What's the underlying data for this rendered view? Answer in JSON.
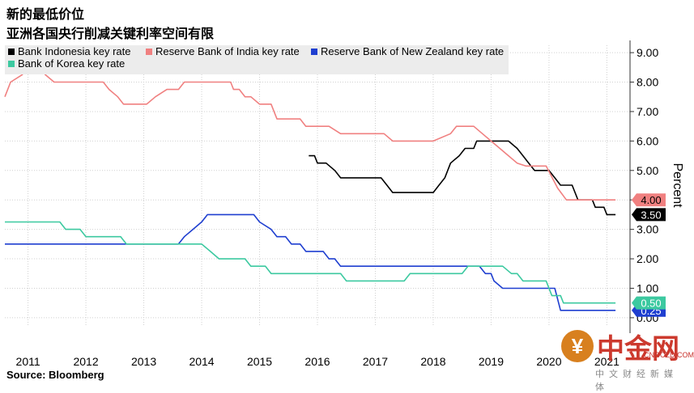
{
  "title_line1": "新的最低价位",
  "title_line2": "亚洲各国央行削减关键利率空间有限",
  "source": "Source: Bloomberg",
  "watermark": {
    "name": "中金网",
    "url": "CNGOLD.COM",
    "tagline": "中文财经新媒体"
  },
  "chart_data": {
    "type": "line",
    "title": "新的最低价位",
    "subtitle": "亚洲各国央行削减关键利率空间有限",
    "xlabel": "",
    "ylabel": "Percent",
    "xlim": [
      2010.6,
      2021.4
    ],
    "ylim": [
      -0.25,
      9.25
    ],
    "x_ticks": [
      "2011",
      "2012",
      "2013",
      "2014",
      "2015",
      "2016",
      "2017",
      "2018",
      "2019",
      "2020",
      "2021"
    ],
    "y_ticks": [
      "0.00",
      "1.00",
      "2.00",
      "3.00",
      "4.00",
      "5.00",
      "6.00",
      "7.00",
      "8.00",
      "9.00"
    ],
    "grid": true,
    "legend_position": "top-left",
    "series": [
      {
        "name": "Bank Indonesia key rate",
        "color": "#000000",
        "end_label": "3.50",
        "points": [
          [
            2015.85,
            5.5
          ],
          [
            2015.95,
            5.5
          ],
          [
            2016.0,
            5.25
          ],
          [
            2016.15,
            5.25
          ],
          [
            2016.3,
            5.0
          ],
          [
            2016.4,
            4.75
          ],
          [
            2016.6,
            4.75
          ],
          [
            2017.0,
            4.75
          ],
          [
            2017.1,
            4.75
          ],
          [
            2017.2,
            4.5
          ],
          [
            2017.3,
            4.25
          ],
          [
            2017.95,
            4.25
          ],
          [
            2018.0,
            4.25
          ],
          [
            2018.1,
            4.5
          ],
          [
            2018.2,
            4.75
          ],
          [
            2018.3,
            5.25
          ],
          [
            2018.45,
            5.5
          ],
          [
            2018.55,
            5.75
          ],
          [
            2018.7,
            5.75
          ],
          [
            2018.75,
            6.0
          ],
          [
            2019.0,
            6.0
          ],
          [
            2019.3,
            6.0
          ],
          [
            2019.45,
            5.75
          ],
          [
            2019.55,
            5.5
          ],
          [
            2019.65,
            5.25
          ],
          [
            2019.75,
            5.0
          ],
          [
            2020.0,
            5.0
          ],
          [
            2020.1,
            4.75
          ],
          [
            2020.2,
            4.5
          ],
          [
            2020.4,
            4.5
          ],
          [
            2020.5,
            4.0
          ],
          [
            2020.75,
            4.0
          ],
          [
            2020.8,
            3.75
          ],
          [
            2020.95,
            3.75
          ],
          [
            2021.0,
            3.5
          ],
          [
            2021.15,
            3.5
          ]
        ]
      },
      {
        "name": "Reserve Bank of India key rate",
        "color": "#f08080",
        "end_label": "4.00",
        "points": [
          [
            2010.6,
            7.5
          ],
          [
            2010.7,
            8.0
          ],
          [
            2010.9,
            8.25
          ],
          [
            2011.0,
            8.5
          ],
          [
            2011.2,
            8.5
          ],
          [
            2011.3,
            8.25
          ],
          [
            2011.45,
            8.0
          ],
          [
            2012.0,
            8.0
          ],
          [
            2012.05,
            8.0
          ],
          [
            2012.3,
            8.0
          ],
          [
            2012.4,
            7.75
          ],
          [
            2012.55,
            7.5
          ],
          [
            2012.65,
            7.25
          ],
          [
            2013.0,
            7.25
          ],
          [
            2013.05,
            7.25
          ],
          [
            2013.2,
            7.5
          ],
          [
            2013.4,
            7.75
          ],
          [
            2013.6,
            7.75
          ],
          [
            2013.7,
            8.0
          ],
          [
            2014.0,
            8.0
          ],
          [
            2014.4,
            8.0
          ],
          [
            2014.5,
            8.0
          ],
          [
            2014.55,
            7.75
          ],
          [
            2014.65,
            7.75
          ],
          [
            2014.75,
            7.5
          ],
          [
            2014.85,
            7.5
          ],
          [
            2015.0,
            7.25
          ],
          [
            2015.2,
            7.25
          ],
          [
            2015.3,
            6.75
          ],
          [
            2015.7,
            6.75
          ],
          [
            2015.8,
            6.5
          ],
          [
            2016.0,
            6.5
          ],
          [
            2016.2,
            6.5
          ],
          [
            2016.4,
            6.25
          ],
          [
            2017.0,
            6.25
          ],
          [
            2017.05,
            6.25
          ],
          [
            2017.15,
            6.25
          ],
          [
            2017.3,
            6.0
          ],
          [
            2018.0,
            6.0
          ],
          [
            2018.3,
            6.25
          ],
          [
            2018.4,
            6.5
          ],
          [
            2018.7,
            6.5
          ],
          [
            2018.85,
            6.25
          ],
          [
            2019.0,
            6.0
          ],
          [
            2019.15,
            5.75
          ],
          [
            2019.3,
            5.5
          ],
          [
            2019.45,
            5.25
          ],
          [
            2019.6,
            5.15
          ],
          [
            2019.75,
            5.15
          ],
          [
            2019.95,
            5.15
          ],
          [
            2020.15,
            4.4
          ],
          [
            2020.3,
            4.0
          ],
          [
            2021.15,
            4.0
          ]
        ]
      },
      {
        "name": "Reserve Bank of New Zealand key rate",
        "color": "#1f3fd0",
        "end_label": "0.25",
        "points": [
          [
            2010.6,
            2.5
          ],
          [
            2011.0,
            2.5
          ],
          [
            2012.0,
            2.5
          ],
          [
            2013.0,
            2.5
          ],
          [
            2013.5,
            2.5
          ],
          [
            2013.6,
            2.5
          ],
          [
            2013.7,
            2.75
          ],
          [
            2013.85,
            3.0
          ],
          [
            2014.0,
            3.25
          ],
          [
            2014.1,
            3.5
          ],
          [
            2014.5,
            3.5
          ],
          [
            2014.9,
            3.5
          ],
          [
            2015.0,
            3.25
          ],
          [
            2015.2,
            3.0
          ],
          [
            2015.3,
            2.75
          ],
          [
            2015.45,
            2.75
          ],
          [
            2015.55,
            2.5
          ],
          [
            2015.7,
            2.5
          ],
          [
            2015.8,
            2.25
          ],
          [
            2016.1,
            2.25
          ],
          [
            2016.2,
            2.0
          ],
          [
            2016.3,
            2.0
          ],
          [
            2016.4,
            1.75
          ],
          [
            2017.0,
            1.75
          ],
          [
            2018.0,
            1.75
          ],
          [
            2018.8,
            1.75
          ],
          [
            2018.9,
            1.5
          ],
          [
            2019.0,
            1.5
          ],
          [
            2019.05,
            1.25
          ],
          [
            2019.2,
            1.0
          ],
          [
            2019.6,
            1.0
          ],
          [
            2020.1,
            1.0
          ],
          [
            2020.2,
            0.25
          ],
          [
            2021.15,
            0.25
          ]
        ]
      },
      {
        "name": "Bank of Korea key rate",
        "color": "#3cc9a0",
        "end_label": "0.50",
        "points": [
          [
            2010.6,
            3.25
          ],
          [
            2011.0,
            3.25
          ],
          [
            2011.45,
            3.25
          ],
          [
            2011.55,
            3.25
          ],
          [
            2011.65,
            3.0
          ],
          [
            2011.9,
            3.0
          ],
          [
            2012.0,
            2.75
          ],
          [
            2012.6,
            2.75
          ],
          [
            2012.7,
            2.5
          ],
          [
            2013.0,
            2.5
          ],
          [
            2013.6,
            2.5
          ],
          [
            2013.85,
            2.5
          ],
          [
            2014.0,
            2.5
          ],
          [
            2014.15,
            2.25
          ],
          [
            2014.3,
            2.0
          ],
          [
            2014.75,
            2.0
          ],
          [
            2014.85,
            1.75
          ],
          [
            2015.0,
            1.75
          ],
          [
            2015.1,
            1.75
          ],
          [
            2015.2,
            1.5
          ],
          [
            2016.0,
            1.5
          ],
          [
            2016.4,
            1.5
          ],
          [
            2016.5,
            1.25
          ],
          [
            2017.0,
            1.25
          ],
          [
            2017.5,
            1.25
          ],
          [
            2017.6,
            1.5
          ],
          [
            2018.0,
            1.5
          ],
          [
            2018.5,
            1.5
          ],
          [
            2018.6,
            1.75
          ],
          [
            2019.0,
            1.75
          ],
          [
            2019.2,
            1.75
          ],
          [
            2019.35,
            1.5
          ],
          [
            2019.45,
            1.5
          ],
          [
            2019.55,
            1.25
          ],
          [
            2019.95,
            1.25
          ],
          [
            2020.05,
            0.75
          ],
          [
            2020.2,
            0.75
          ],
          [
            2020.25,
            0.5
          ],
          [
            2021.15,
            0.5
          ]
        ]
      }
    ]
  }
}
